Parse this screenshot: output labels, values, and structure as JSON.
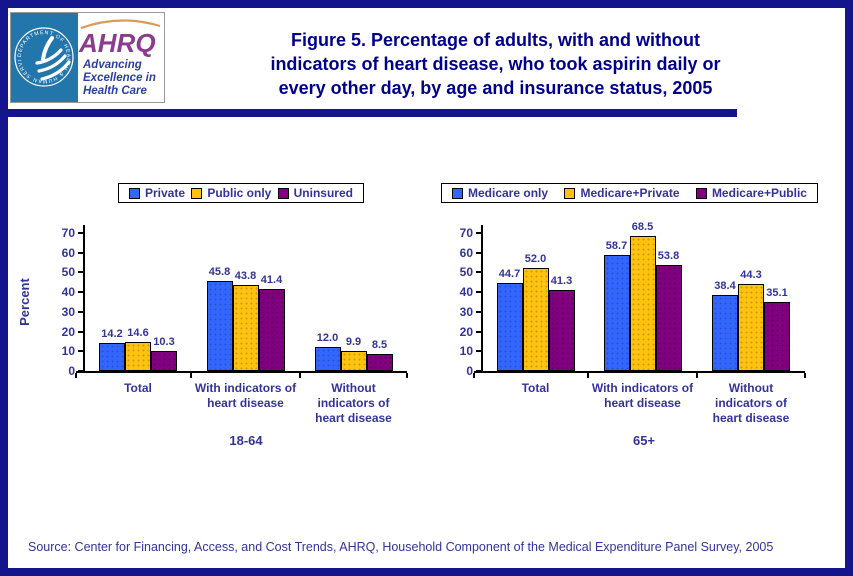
{
  "header": {
    "title_lines": [
      "Figure 5. Percentage of adults, with and without",
      "indicators of heart disease, who took aspirin daily or",
      "every other day, by  age and insurance status, 2005"
    ],
    "logo": {
      "org_acronym": "AHRQ",
      "tagline_lines": [
        "Advancing",
        "Excellence in",
        "Health Care"
      ],
      "seal_text": "DEPARTMENT OF HEALTH & HUMAN SERVICES - USA"
    }
  },
  "footer": {
    "source": "Source: Center for Financing, Access, and Cost Trends, AHRQ, Household Component of the Medical Expenditure Panel Survey, 2005"
  },
  "colors": {
    "series": [
      "#3366FF",
      "#FFC20E",
      "#800080"
    ],
    "chart_text": "#333399",
    "title_text": "#00008B",
    "frame": "#14148C",
    "axis": "#000000",
    "seal_blue": "#2276AC",
    "ahrq_purple": "#8A3C8F",
    "tagline_blue": "#2B3FA0",
    "arc_orange": "#D99B57"
  },
  "chart_data": [
    {
      "type": "bar",
      "group_label": "18-64",
      "ylabel": "Percent",
      "ylim": [
        0,
        70
      ],
      "ytick_step": 10,
      "grid": false,
      "legend_position": "top",
      "value_labels": true,
      "categories": [
        "Total",
        "With indicators of heart disease",
        "Without indicators of heart disease"
      ],
      "categories_lines": [
        [
          "Total"
        ],
        [
          "With indicators of",
          "heart disease"
        ],
        [
          "Without",
          "indicators of",
          "heart disease"
        ]
      ],
      "series": [
        {
          "name": "Private",
          "values": [
            14.2,
            45.8,
            12.0
          ]
        },
        {
          "name": "Public only",
          "values": [
            14.6,
            43.8,
            9.9
          ]
        },
        {
          "name": "Uninsured",
          "values": [
            10.3,
            41.4,
            8.5
          ]
        }
      ]
    },
    {
      "type": "bar",
      "group_label": "65+",
      "ylabel": "",
      "ylim": [
        0,
        70
      ],
      "ytick_step": 10,
      "grid": false,
      "legend_position": "top",
      "value_labels": true,
      "categories": [
        "Total",
        "With indicators of heart disease",
        "Without indicators of heart disease"
      ],
      "categories_lines": [
        [
          "Total"
        ],
        [
          "With indicators of",
          "heart disease"
        ],
        [
          "Without",
          "indicators of",
          "heart disease"
        ]
      ],
      "series": [
        {
          "name": "Medicare only",
          "values": [
            44.7,
            58.7,
            38.4
          ]
        },
        {
          "name": "Medicare+Private",
          "values": [
            52.0,
            68.5,
            44.3
          ]
        },
        {
          "name": "Medicare+Public",
          "values": [
            41.3,
            53.8,
            35.1
          ]
        }
      ]
    }
  ]
}
